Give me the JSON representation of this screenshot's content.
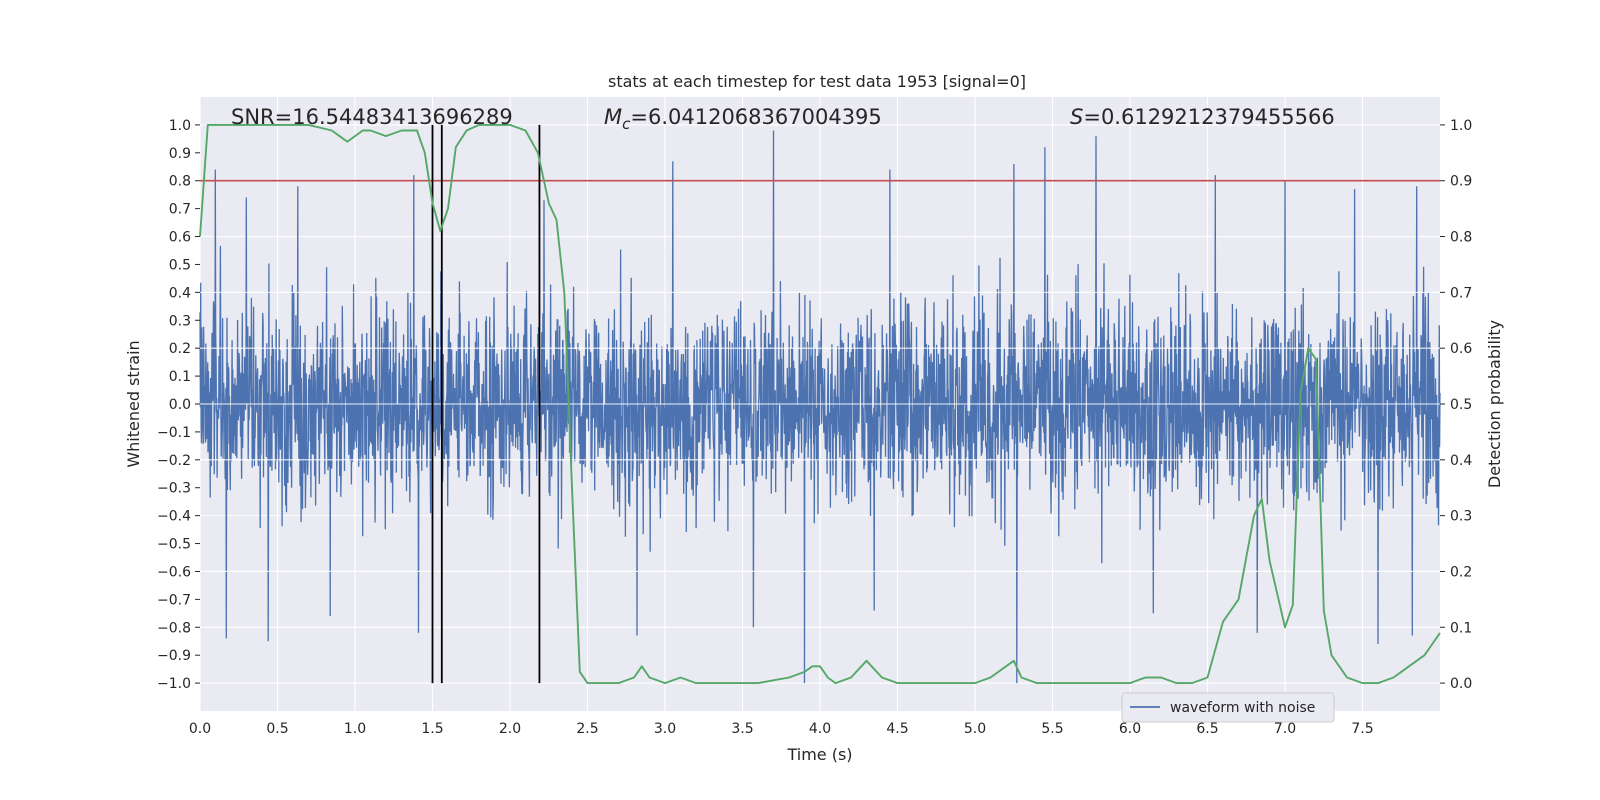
{
  "chart_data": {
    "type": "line",
    "title": "stats at each timestep for test data 1953 [signal=0]",
    "xlabel": "Time (s)",
    "ylabel": "Whitened strain",
    "y2label": "Detection probability",
    "xlim": [
      0.0,
      8.0
    ],
    "ylim": [
      -1.1,
      1.1
    ],
    "y2lim": [
      -0.05,
      1.05
    ],
    "xticks": [
      "0.0",
      "0.5",
      "1.0",
      "1.5",
      "2.0",
      "2.5",
      "3.0",
      "3.5",
      "4.0",
      "4.5",
      "5.0",
      "5.5",
      "6.0",
      "6.5",
      "7.0",
      "7.5"
    ],
    "yticks": [
      "1.0",
      "0.9",
      "0.8",
      "0.7",
      "0.6",
      "0.5",
      "0.4",
      "0.3",
      "0.2",
      "0.1",
      "0.0",
      "−0.1",
      "−0.2",
      "−0.3",
      "−0.4",
      "−0.5",
      "−0.6",
      "−0.7",
      "−0.8",
      "−0.9",
      "−1.0"
    ],
    "y2ticks": [
      "1.0",
      "0.9",
      "0.8",
      "0.7",
      "0.6",
      "0.5",
      "0.4",
      "0.3",
      "0.2",
      "0.1",
      "0.0"
    ],
    "grid": true,
    "legend": {
      "entries": [
        "waveform with noise"
      ],
      "placement": "lower right"
    },
    "annotations": {
      "snr": "SNR=16.54483413696289",
      "mc_sym": "M",
      "mc_sub": "c",
      "mc_val": "=6.0412068367004395",
      "s_sym": "S",
      "s_val": "=0.6129212379455566"
    },
    "threshold": {
      "y2": 0.9,
      "color": "#c44e52"
    },
    "vlines": [
      1.5,
      1.56,
      2.19
    ],
    "series": [
      {
        "name": "waveform with noise",
        "color": "#4c72b0",
        "axis": "left",
        "t_range": [
          0.0,
          8.0
        ],
        "typical_amplitude": 0.4,
        "peaks": [
          {
            "t": 0.1,
            "v": 0.84
          },
          {
            "t": 0.3,
            "v": 0.74
          },
          {
            "t": 0.63,
            "v": 0.78
          },
          {
            "t": 1.38,
            "v": 0.82
          },
          {
            "t": 2.22,
            "v": 0.73
          },
          {
            "t": 3.05,
            "v": 0.87
          },
          {
            "t": 3.7,
            "v": 0.98
          },
          {
            "t": 4.45,
            "v": 0.84
          },
          {
            "t": 5.25,
            "v": 0.86
          },
          {
            "t": 5.45,
            "v": 0.92
          },
          {
            "t": 5.78,
            "v": 0.96
          },
          {
            "t": 6.55,
            "v": 0.82
          },
          {
            "t": 7.0,
            "v": 0.8
          },
          {
            "t": 7.45,
            "v": 0.77
          },
          {
            "t": 7.85,
            "v": 0.78
          },
          {
            "t": 0.17,
            "v": -0.84
          },
          {
            "t": 0.44,
            "v": -0.85
          },
          {
            "t": 0.84,
            "v": -0.76
          },
          {
            "t": 1.41,
            "v": -0.82
          },
          {
            "t": 2.82,
            "v": -0.83
          },
          {
            "t": 3.57,
            "v": -0.8
          },
          {
            "t": 3.9,
            "v": -1.0
          },
          {
            "t": 4.35,
            "v": -0.74
          },
          {
            "t": 5.27,
            "v": -1.0
          },
          {
            "t": 6.15,
            "v": -0.75
          },
          {
            "t": 6.82,
            "v": -0.82
          },
          {
            "t": 7.6,
            "v": -0.86
          },
          {
            "t": 7.82,
            "v": -0.83
          }
        ]
      },
      {
        "name": "",
        "color": "#55a868",
        "axis": "right",
        "x": [
          0.0,
          0.05,
          0.1,
          0.2,
          0.3,
          0.5,
          0.7,
          0.85,
          0.95,
          1.0,
          1.05,
          1.1,
          1.2,
          1.3,
          1.4,
          1.45,
          1.5,
          1.55,
          1.6,
          1.65,
          1.72,
          1.8,
          1.9,
          2.0,
          2.1,
          2.18,
          2.25,
          2.3,
          2.35,
          2.4,
          2.45,
          2.5,
          2.55,
          2.6,
          2.7,
          2.8,
          2.85,
          2.9,
          3.0,
          3.1,
          3.2,
          3.4,
          3.6,
          3.8,
          3.9,
          3.95,
          4.0,
          4.05,
          4.1,
          4.2,
          4.3,
          4.4,
          4.5,
          4.7,
          4.9,
          5.0,
          5.1,
          5.2,
          5.25,
          5.3,
          5.4,
          5.5,
          5.6,
          5.8,
          6.0,
          6.1,
          6.2,
          6.3,
          6.4,
          6.5,
          6.6,
          6.7,
          6.8,
          6.85,
          6.9,
          7.0,
          7.05,
          7.1,
          7.15,
          7.2,
          7.25,
          7.3,
          7.4,
          7.5,
          7.6,
          7.7,
          7.8,
          7.9,
          8.0
        ],
        "y": [
          0.8,
          1.0,
          1.0,
          1.0,
          1.0,
          1.0,
          1.0,
          0.99,
          0.97,
          0.98,
          0.99,
          0.99,
          0.98,
          0.99,
          0.99,
          0.95,
          0.86,
          0.81,
          0.85,
          0.96,
          0.99,
          1.0,
          1.0,
          1.0,
          0.99,
          0.95,
          0.86,
          0.83,
          0.7,
          0.35,
          0.02,
          0.0,
          0.0,
          0.0,
          0.0,
          0.01,
          0.03,
          0.01,
          0.0,
          0.01,
          0.0,
          0.0,
          0.0,
          0.01,
          0.02,
          0.03,
          0.03,
          0.01,
          0.0,
          0.01,
          0.04,
          0.01,
          0.0,
          0.0,
          0.0,
          0.0,
          0.01,
          0.03,
          0.04,
          0.01,
          0.0,
          0.0,
          0.0,
          0.0,
          0.0,
          0.01,
          0.01,
          0.0,
          0.0,
          0.01,
          0.11,
          0.15,
          0.3,
          0.33,
          0.22,
          0.1,
          0.14,
          0.52,
          0.6,
          0.58,
          0.13,
          0.05,
          0.01,
          0.0,
          0.0,
          0.01,
          0.03,
          0.05,
          0.09
        ]
      }
    ]
  }
}
